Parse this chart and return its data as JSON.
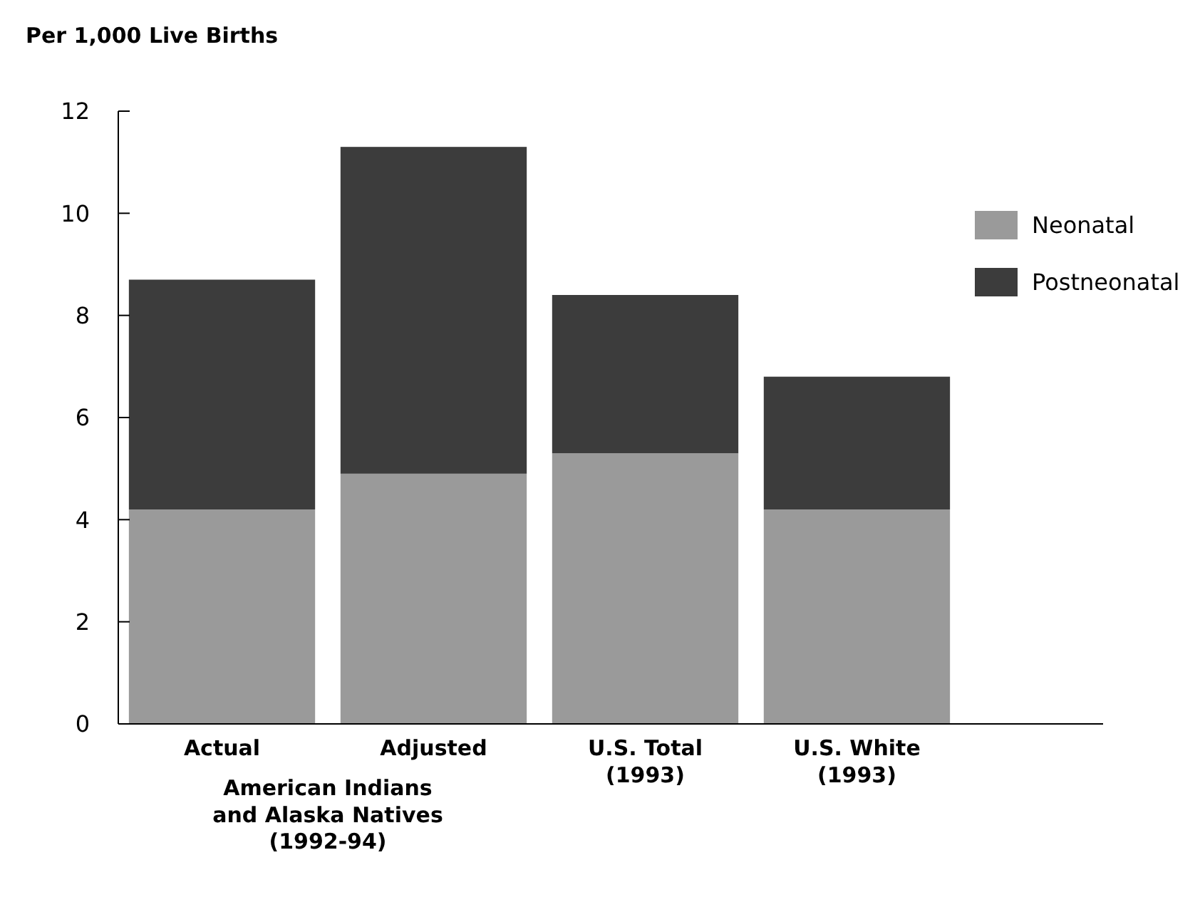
{
  "chart_data": {
    "type": "bar",
    "stacked": true,
    "ylabel": "Per 1,000 Live Births",
    "categories": [
      "Actual",
      "Adjusted",
      "U.S. Total\n(1993)",
      "U.S. White\n(1993)"
    ],
    "series": [
      {
        "name": "Neonatal",
        "color": "#9a9a9a",
        "values": [
          4.2,
          4.9,
          5.3,
          4.2
        ]
      },
      {
        "name": "Postneonatal",
        "color": "#3c3c3c",
        "values": [
          4.5,
          6.4,
          3.1,
          2.6
        ]
      }
    ],
    "ylim": [
      0,
      12
    ],
    "yticks": [
      0,
      2,
      4,
      6,
      8,
      10,
      12
    ],
    "legend": "top right",
    "grid": false,
    "annotations": [
      "American Indians\nand Alaska Natives\n(1992-94)"
    ]
  }
}
